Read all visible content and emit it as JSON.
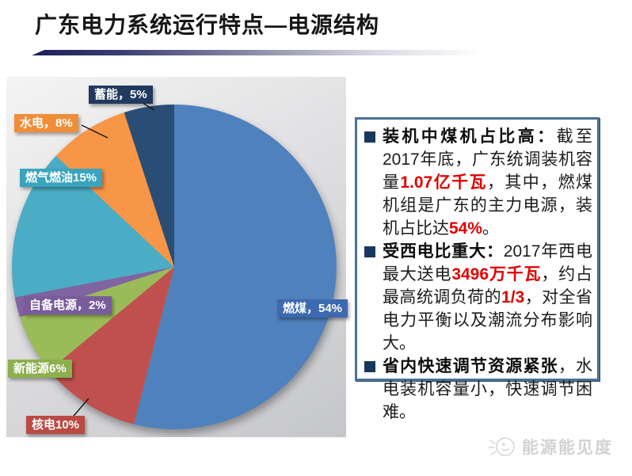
{
  "title": "广东电力系统运行特点—电源结构",
  "chart_data": {
    "type": "pie",
    "title": "",
    "unit": "%",
    "start": "top",
    "direction": "clockwise",
    "slices": [
      {
        "name": "燃煤",
        "value": 54,
        "label": "燃煤，54%",
        "color": "#4F81BD",
        "label_bg": "#3C69AF"
      },
      {
        "name": "核电",
        "value": 10,
        "label": "核电10%",
        "color": "#C0504D",
        "label_bg": "#BB4A45"
      },
      {
        "name": "新能源",
        "value": 6,
        "label": "新能源6%",
        "color": "#9BBB59",
        "label_bg": "#8DB04E"
      },
      {
        "name": "自备电源",
        "value": 2,
        "label": "自备电源，2%",
        "color": "#8064A2",
        "label_bg": "#795C9C"
      },
      {
        "name": "燃气燃油",
        "value": 15,
        "label": "燃气燃油15%",
        "color": "#4BACC6",
        "label_bg": "#3AA4BE"
      },
      {
        "name": "水电",
        "value": 8,
        "label": "水电，8%",
        "color": "#F79646",
        "label_bg": "#EF8E38"
      },
      {
        "name": "蓄能",
        "value": 5,
        "label": "蓄能，5%",
        "color": "#2A4D75",
        "label_bg": "#21395E"
      }
    ]
  },
  "info_box": {
    "bullets": [
      {
        "segments": [
          {
            "text": "装机中煤机占比高：",
            "style": "lead"
          },
          {
            "text": "截至2017年底，广东统调装机容量",
            "style": "normal"
          },
          {
            "text": "1.07亿千瓦",
            "style": "red"
          },
          {
            "text": "，其中，燃煤机组是广东的主力电源，装机占比达",
            "style": "normal"
          },
          {
            "text": "54%",
            "style": "red"
          },
          {
            "text": "。",
            "style": "normal"
          }
        ]
      },
      {
        "segments": [
          {
            "text": "受西电比重大：",
            "style": "lead"
          },
          {
            "text": "2017年西电最大送电",
            "style": "normal"
          },
          {
            "text": "3496万千瓦",
            "style": "red"
          },
          {
            "text": "，约占最高统调负荷的",
            "style": "normal"
          },
          {
            "text": "1/3",
            "style": "red"
          },
          {
            "text": "，对全省电力平衡以及潮流分布影响大。",
            "style": "normal"
          }
        ]
      },
      {
        "segments": [
          {
            "text": "省内快速调节资源紧张",
            "style": "lead"
          },
          {
            "text": "，水电装机容量小，快速调节困难。",
            "style": "normal"
          }
        ]
      }
    ]
  },
  "watermark": {
    "text": "能源能见度",
    "icon": "sun-face-icon"
  },
  "colors": {
    "accent_red": "#E00000",
    "bullet_navy": "#17375E",
    "box_border": "#4A7296",
    "underline_navy": "#1E1E5A",
    "panel_gray": "#C5C6C9"
  }
}
